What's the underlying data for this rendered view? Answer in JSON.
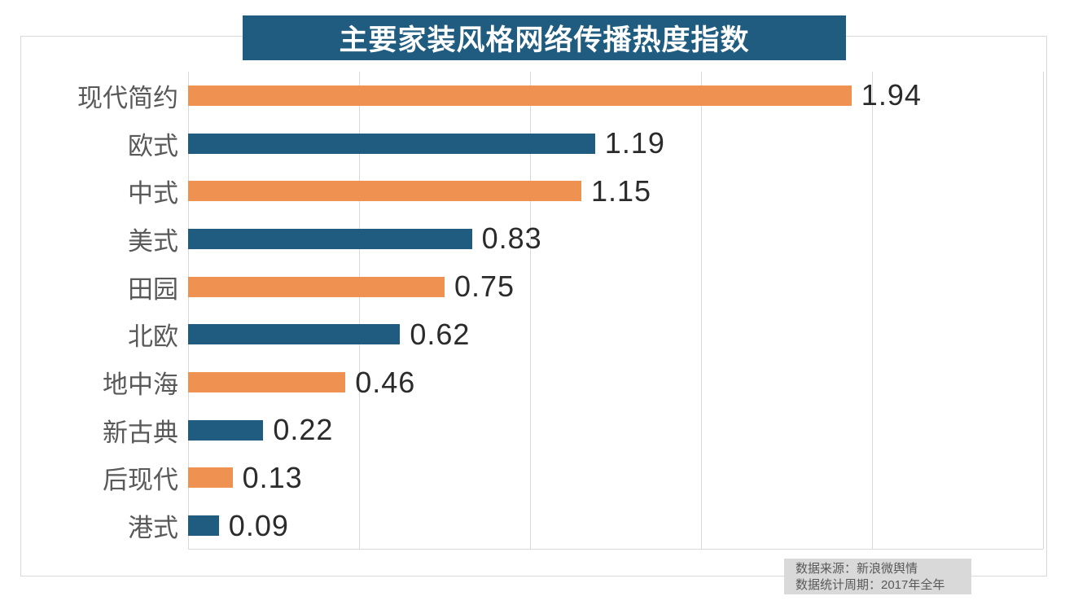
{
  "title": "主要家装风格网络传播热度指数",
  "source_note": {
    "line1": "数据来源：新浪微舆情",
    "line2": "数据统计周期：2017年全年"
  },
  "colors": {
    "orange": "#EF9150",
    "teal": "#1F5C80",
    "banner_bg": "#1F5C80",
    "banner_text": "#FFFFFF",
    "grid": "#D9D9D9",
    "category_label": "#595959",
    "value_label": "#2B2B2B",
    "footer_bg": "#D9D9D9",
    "footer_text": "#595959"
  },
  "chart_data": {
    "type": "bar",
    "orientation": "horizontal",
    "title": "主要家装风格网络传播热度指数",
    "categories": [
      "现代简约",
      "欧式",
      "中式",
      "美式",
      "田园",
      "北欧",
      "地中海",
      "新古典",
      "后现代",
      "港式"
    ],
    "values": [
      1.94,
      1.19,
      1.15,
      0.83,
      0.75,
      0.62,
      0.46,
      0.22,
      0.13,
      0.09
    ],
    "value_labels": [
      "1.94",
      "1.19",
      "1.15",
      "0.83",
      "0.75",
      "0.62",
      "0.46",
      "0.22",
      "0.13",
      "0.09"
    ],
    "xlabel": "",
    "ylabel": "",
    "xlim": [
      0,
      2.5
    ],
    "tick_step": 0.5,
    "grid": true,
    "legend": false,
    "bar_color_pattern": [
      "#EF9150",
      "#1F5C80"
    ]
  }
}
